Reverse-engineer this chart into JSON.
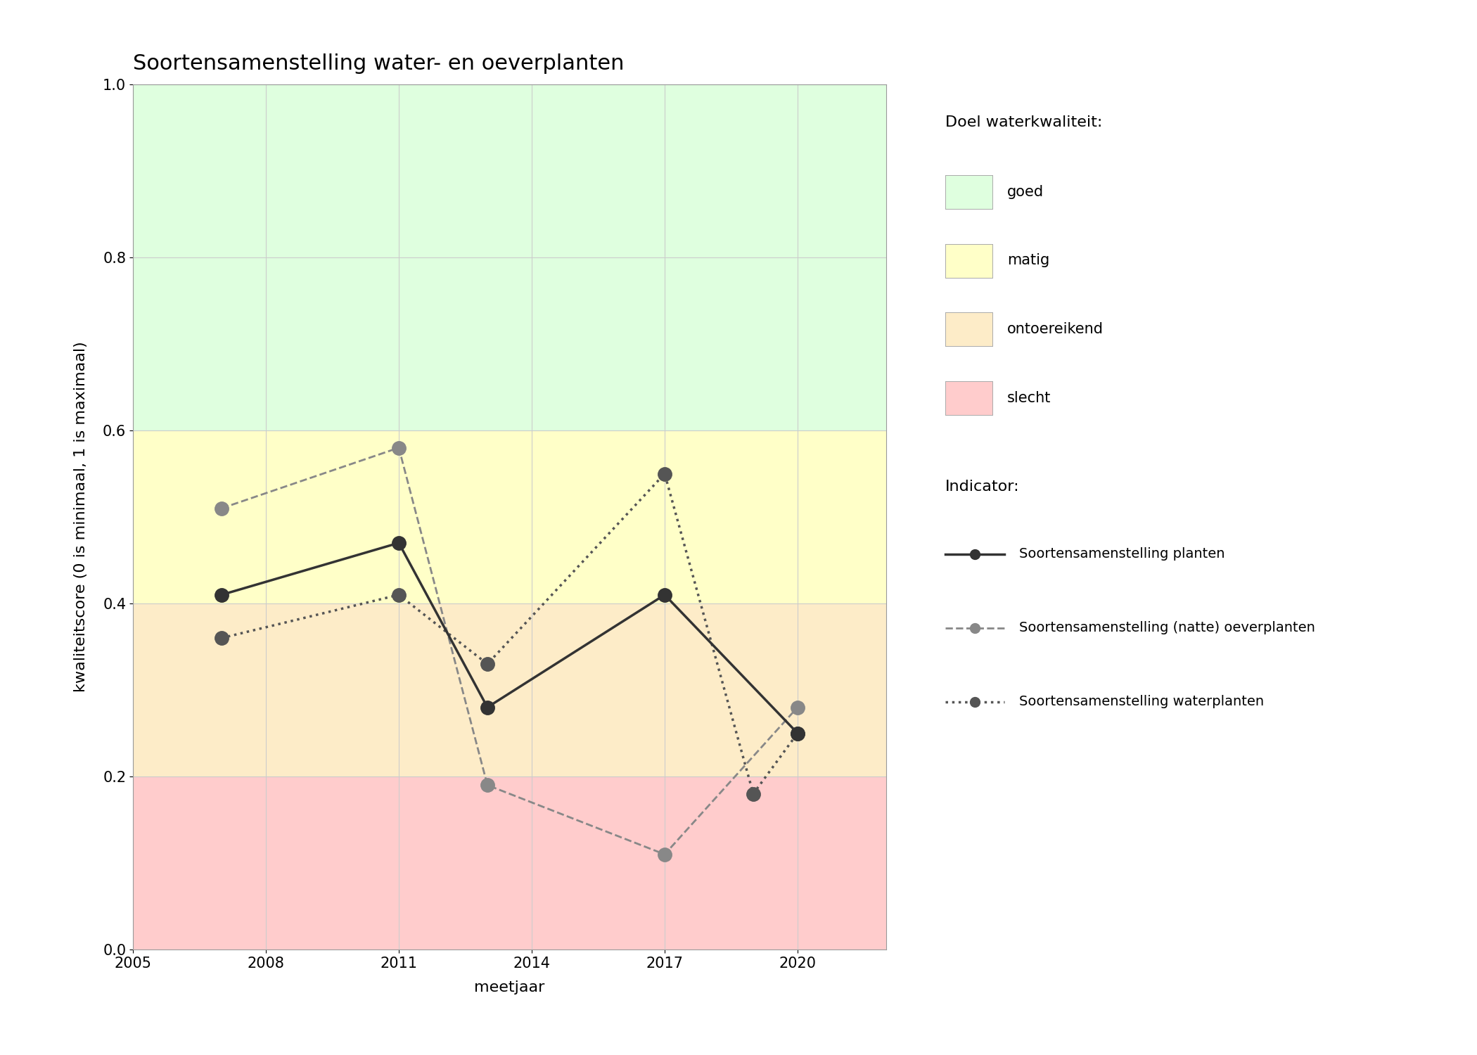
{
  "title": "Soortensamenstelling water- en oeverplanten",
  "xlabel": "meetjaar",
  "ylabel": "kwaliteitscore (0 is minimaal, 1 is maximaal)",
  "xlim": [
    2005,
    2022
  ],
  "ylim": [
    0.0,
    1.0
  ],
  "xticks": [
    2005,
    2008,
    2011,
    2014,
    2017,
    2020
  ],
  "yticks": [
    0.0,
    0.2,
    0.4,
    0.6,
    0.8,
    1.0
  ],
  "bg_zones": [
    {
      "ymin": 0.0,
      "ymax": 0.2,
      "color": "#FFCCCC",
      "label": "slecht"
    },
    {
      "ymin": 0.2,
      "ymax": 0.4,
      "color": "#FDECC8",
      "label": "ontoereikend"
    },
    {
      "ymin": 0.4,
      "ymax": 0.6,
      "color": "#FFFFC8",
      "label": "matig"
    },
    {
      "ymin": 0.6,
      "ymax": 1.0,
      "color": "#DFFFDF",
      "label": "goed"
    }
  ],
  "series": [
    {
      "name": "Soortensamenstelling planten",
      "x": [
        2007,
        2011,
        2013,
        2017,
        2020
      ],
      "y": [
        0.41,
        0.47,
        0.28,
        0.41,
        0.25
      ],
      "color": "#333333",
      "linestyle": "solid",
      "linewidth": 2.5,
      "markersize": 14,
      "marker": "o",
      "zorder": 5
    },
    {
      "name": "Soortensamenstelling (natte) oeverplanten",
      "x": [
        2007,
        2011,
        2013,
        2017,
        2020
      ],
      "y": [
        0.51,
        0.58,
        0.19,
        0.11,
        0.28
      ],
      "color": "#888888",
      "linestyle": "dashed",
      "linewidth": 2.0,
      "markersize": 14,
      "marker": "o",
      "zorder": 4
    },
    {
      "name": "Soortensamenstelling waterplanten",
      "x": [
        2007,
        2011,
        2013,
        2017,
        2019,
        2020
      ],
      "y": [
        0.36,
        0.41,
        0.33,
        0.55,
        0.18,
        0.25
      ],
      "color": "#555555",
      "linestyle": "dotted",
      "linewidth": 2.5,
      "markersize": 14,
      "marker": "o",
      "zorder": 3
    }
  ],
  "legend_title_quality": "Doel waterkwaliteit:",
  "legend_title_indicator": "Indicator:",
  "quality_labels": [
    "goed",
    "matig",
    "ontoereikend",
    "slecht"
  ],
  "quality_colors": [
    "#DFFFDF",
    "#FFFFC8",
    "#FDECC8",
    "#FFCCCC"
  ],
  "bg_color": "#FFFFFF",
  "grid_color": "#CCCCCC",
  "title_fontsize": 22,
  "axis_label_fontsize": 16,
  "tick_fontsize": 15,
  "legend_fontsize": 15
}
